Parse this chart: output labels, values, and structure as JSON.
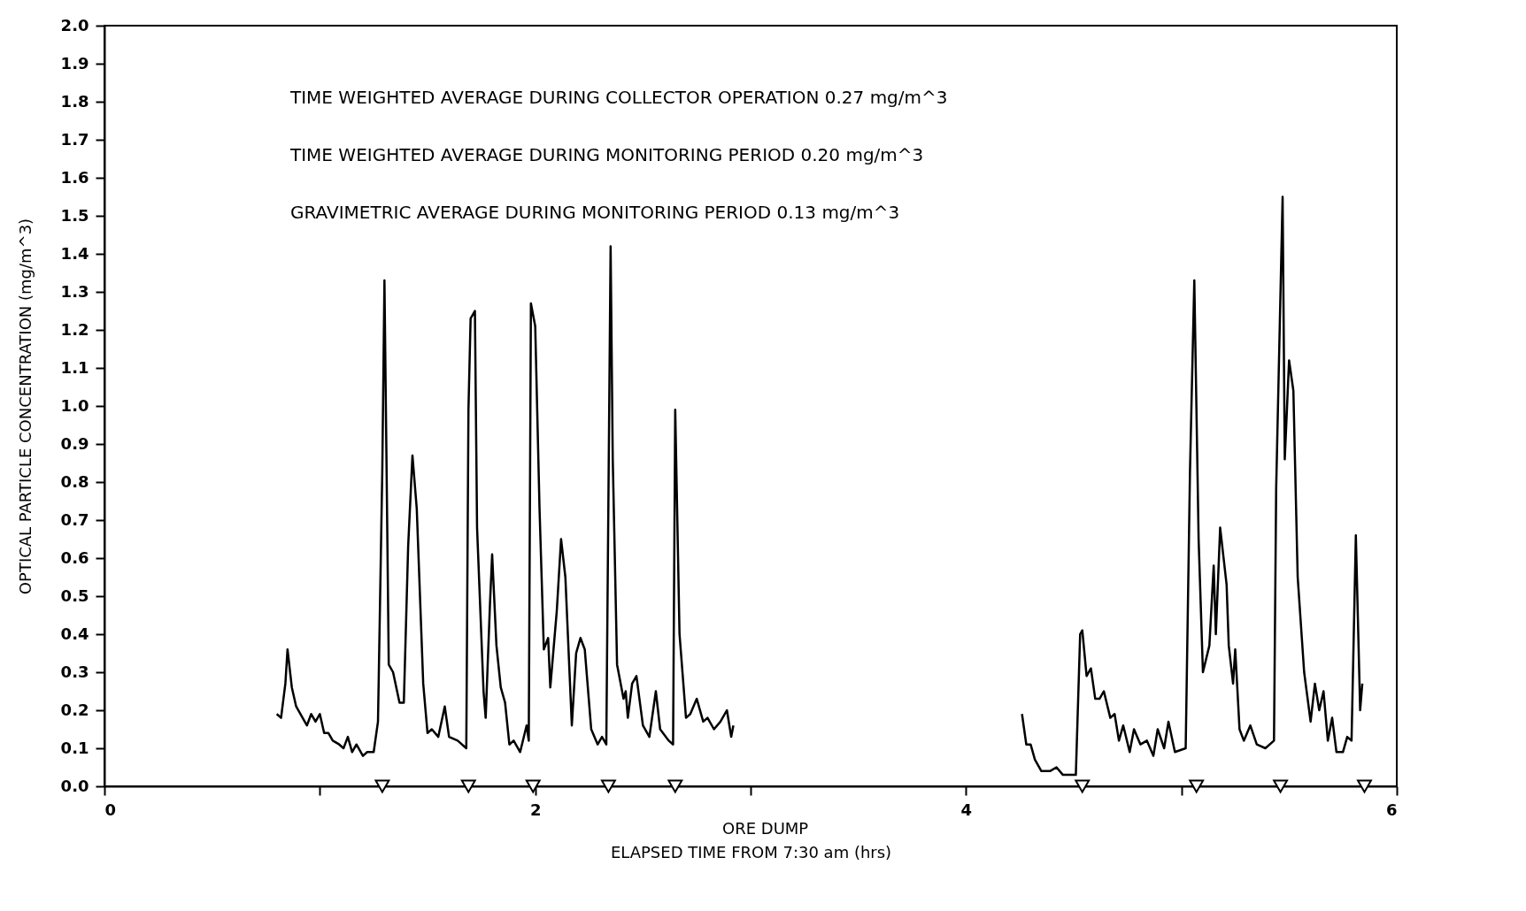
{
  "chart_data": {
    "type": "line",
    "xlabel": "ELAPSED TIME FROM 7:30 am (hrs)",
    "ylabel": "OPTICAL PARTICLE CONCENTRATION (mg/m^3)",
    "annotations": [
      "TIME WEIGHTED AVERAGE DURING COLLECTOR OPERATION 0.27 mg/m^3",
      "TIME WEIGHTED AVERAGE DURING MONITORING PERIOD 0.20 mg/m^3",
      "GRAVIMETRIC AVERAGE DURING MONITORING PERIOD 0.13 mg/m^3"
    ],
    "xlim": [
      0,
      6
    ],
    "xticks": [
      0,
      {
        "value": 1,
        "label": null
      },
      2,
      {
        "value": 3,
        "label": null
      },
      4,
      {
        "value": 5,
        "label": null
      },
      6
    ],
    "ylim": [
      0,
      2
    ],
    "yticks": [
      {
        "value": 0,
        "label": "0.0"
      },
      0.1,
      0.2,
      0.3,
      0.4,
      0.5,
      0.6,
      0.7,
      0.8,
      0.9,
      {
        "value": 1,
        "label": "1.0"
      },
      1.1,
      1.2,
      1.3,
      1.4,
      1.5,
      1.6,
      1.7,
      1.8,
      1.9,
      {
        "value": 2,
        "label": "2.0"
      }
    ],
    "grid": false,
    "legend": "bottom",
    "marker": "none",
    "line_style": "solid",
    "series": [
      {
        "color": "#000000",
        "x": [
          0.8,
          0.82,
          0.84,
          0.85,
          0.87,
          0.89,
          0.92,
          0.94,
          0.96,
          0.98,
          1.0,
          1.02,
          1.04,
          1.06,
          1.09,
          1.11,
          1.13,
          1.15,
          1.17,
          1.2,
          1.22,
          1.25,
          1.27,
          1.29,
          1.3,
          1.31,
          1.32,
          1.34,
          1.37,
          1.39,
          1.41,
          1.43,
          1.45,
          1.48,
          1.5,
          1.52,
          1.55,
          1.58,
          1.6,
          1.64,
          1.68,
          1.69,
          1.7,
          1.72,
          1.73,
          1.76,
          1.77,
          1.79,
          1.8,
          1.82,
          1.84,
          1.86,
          1.88,
          1.9,
          1.93,
          1.96,
          1.97,
          1.98,
          2.0,
          2.02,
          2.04,
          2.06,
          2.07,
          2.1,
          2.12,
          2.14,
          2.17,
          2.19,
          2.21,
          2.23,
          2.26,
          2.29,
          2.31,
          2.33,
          2.35,
          2.36,
          2.38,
          2.41,
          2.42,
          2.43,
          2.45,
          2.47,
          2.5,
          2.53,
          2.56,
          2.58,
          2.62,
          2.64,
          2.65,
          2.67,
          2.7,
          2.72,
          2.75,
          2.78,
          2.8,
          2.83,
          2.86,
          2.89,
          2.91,
          2.92,
          3.5,
          4.26,
          4.28,
          4.3,
          4.32,
          4.35,
          4.39,
          4.42,
          4.45,
          4.49,
          4.51,
          4.53,
          4.54,
          4.56,
          4.58,
          4.6,
          4.62,
          4.64,
          4.67,
          4.69,
          4.71,
          4.73,
          4.76,
          4.78,
          4.81,
          4.84,
          4.87,
          4.89,
          4.92,
          4.94,
          4.97,
          5.02,
          5.04,
          5.06,
          5.08,
          5.1,
          5.13,
          5.15,
          5.16,
          5.18,
          5.21,
          5.22,
          5.24,
          5.25,
          5.27,
          5.29,
          5.32,
          5.35,
          5.39,
          5.43,
          5.44,
          5.47,
          5.48,
          5.5,
          5.52,
          5.54,
          5.57,
          5.6,
          5.62,
          5.64,
          5.66,
          5.68,
          5.7,
          5.72,
          5.75,
          5.77,
          5.79,
          5.81,
          5.83,
          5.84
        ],
        "values": [
          0.19,
          0.18,
          0.27,
          0.36,
          0.26,
          0.21,
          0.18,
          0.16,
          0.19,
          0.17,
          0.19,
          0.14,
          0.14,
          0.12,
          0.11,
          0.1,
          0.13,
          0.09,
          0.11,
          0.08,
          0.09,
          0.09,
          0.17,
          0.83,
          1.33,
          0.83,
          0.32,
          0.3,
          0.22,
          0.22,
          0.63,
          0.87,
          0.73,
          0.27,
          0.14,
          0.15,
          0.13,
          0.21,
          0.13,
          0.12,
          0.1,
          0.99,
          1.23,
          1.25,
          0.68,
          0.25,
          0.18,
          0.48,
          0.61,
          0.37,
          0.26,
          0.22,
          0.11,
          0.12,
          0.09,
          0.16,
          0.12,
          1.27,
          1.21,
          0.73,
          0.36,
          0.39,
          0.26,
          0.46,
          0.65,
          0.55,
          0.16,
          0.35,
          0.39,
          0.36,
          0.15,
          0.11,
          0.13,
          0.11,
          1.42,
          0.86,
          0.32,
          0.23,
          0.25,
          0.18,
          0.27,
          0.29,
          0.16,
          0.13,
          0.25,
          0.15,
          0.12,
          0.11,
          0.99,
          0.4,
          0.18,
          0.19,
          0.23,
          0.17,
          0.18,
          0.15,
          0.17,
          0.2,
          0.13,
          0.16,
          null,
          0.19,
          0.11,
          0.11,
          0.07,
          0.04,
          0.04,
          0.05,
          0.03,
          0.03,
          0.03,
          0.4,
          0.41,
          0.29,
          0.31,
          0.23,
          0.23,
          0.25,
          0.18,
          0.19,
          0.12,
          0.16,
          0.09,
          0.15,
          0.11,
          0.12,
          0.08,
          0.15,
          0.1,
          0.17,
          0.09,
          0.1,
          0.83,
          1.33,
          0.65,
          0.3,
          0.37,
          0.58,
          0.4,
          0.68,
          0.53,
          0.37,
          0.27,
          0.36,
          0.15,
          0.12,
          0.16,
          0.11,
          0.1,
          0.12,
          0.78,
          1.55,
          0.86,
          1.12,
          1.04,
          0.55,
          0.3,
          0.17,
          0.27,
          0.2,
          0.25,
          0.12,
          0.18,
          0.09,
          0.09,
          0.13,
          0.12,
          0.66,
          0.2,
          0.27
        ]
      },
      {
        "type": "scatter",
        "name": "ORE DUMP",
        "color": "#000000",
        "marker": "triangle",
        "x": [
          1.29,
          1.69,
          1.99,
          2.34,
          2.65,
          4.54,
          5.07,
          5.46,
          5.85
        ],
        "values": [
          0,
          0,
          0,
          0,
          0,
          0,
          0,
          0,
          0
        ]
      }
    ]
  }
}
